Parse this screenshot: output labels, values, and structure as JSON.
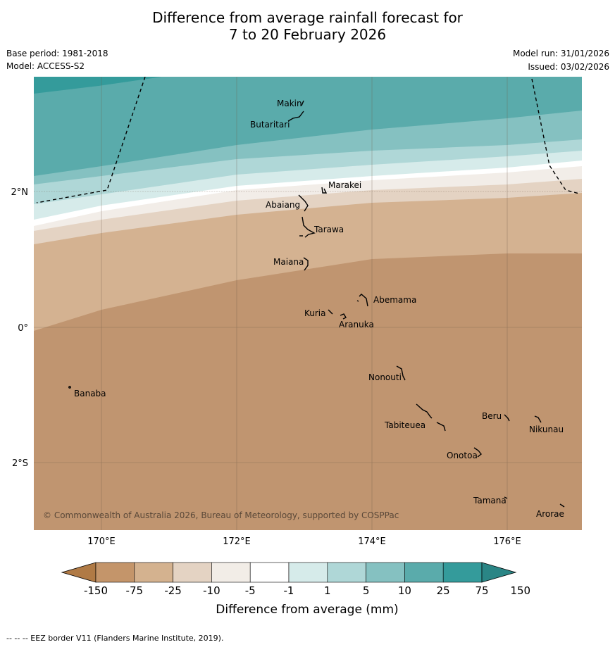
{
  "title_line1": "Difference from average rainfall forecast for",
  "title_line2": "7 to 20 February 2026",
  "base_period": "Base period: 1981-2018",
  "model": "Model: ACCESS-S2",
  "model_run": "Model run: 31/01/2026",
  "issued": "Issued: 03/02/2026",
  "lat_labels": [
    "2°N",
    "0°",
    "2°S"
  ],
  "lon_labels": [
    "170°E",
    "172°E",
    "174°E",
    "176°E"
  ],
  "places": {
    "makin": "Makin",
    "butaritari": "Butaritari",
    "marakei": "Marakei",
    "abaiang": "Abaiang",
    "tarawa": "Tarawa",
    "maiana": "Maiana",
    "abemama": "Abemama",
    "kuria": "Kuria",
    "aranuka": "Aranuka",
    "nonouti": "Nonouti",
    "banaba": "Banaba",
    "beru": "Beru",
    "nikunau": "Nikunau",
    "tabiteuea": "Tabiteuea",
    "onotoa": "Onotoa",
    "tamana": "Tamana",
    "arorae": "Arorae"
  },
  "copyright": "© Commonwealth of Australia 2026, Bureau of Meteorology, supported by COSPPac",
  "legend": {
    "labels": [
      "-150",
      "-75",
      "-25",
      "-10",
      "-5",
      "-1",
      "1",
      "5",
      "10",
      "25",
      "75",
      "150"
    ],
    "colors": [
      "#b07a45",
      "#c4956a",
      "#d4b28f",
      "#e4d3c3",
      "#f2ede7",
      "#ffffff",
      "#d6ebea",
      "#afd7d7",
      "#85c1c1",
      "#5aabab",
      "#349b9b",
      "#2a8585"
    ],
    "title": "Difference from average (mm)"
  },
  "footer": "--  --  -- EEZ border V11 (Flanders Marine Institute, 2019)."
}
